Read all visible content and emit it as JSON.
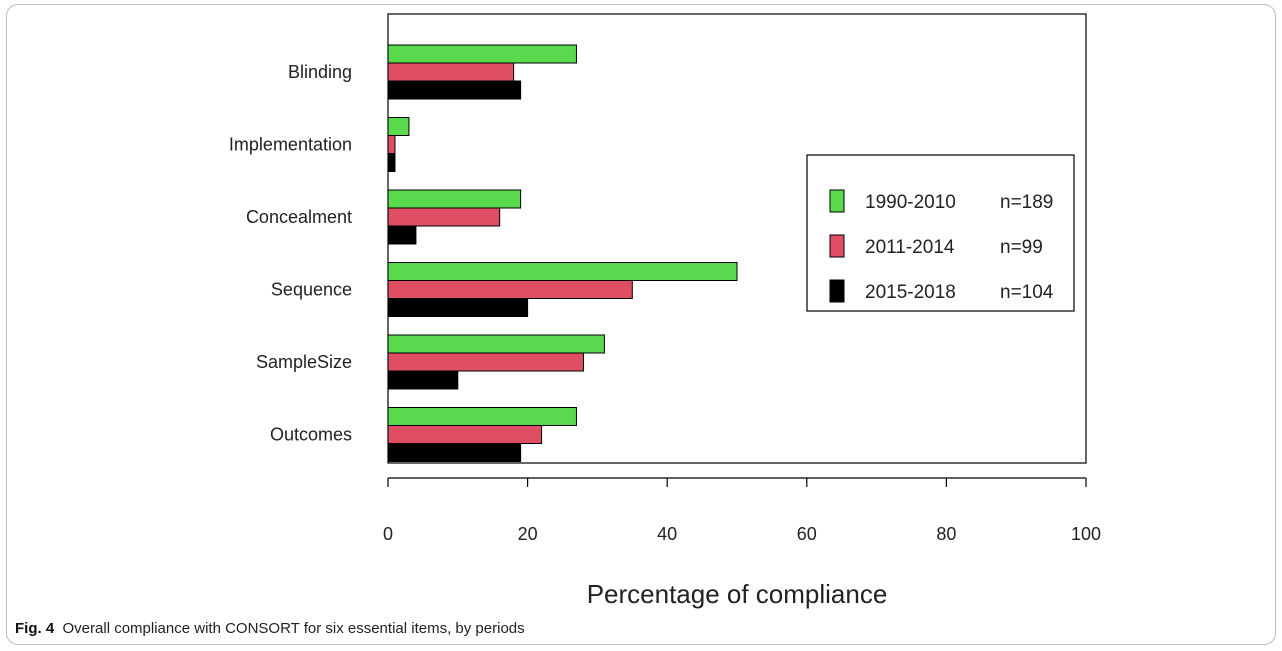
{
  "caption": {
    "label": "Fig. 4",
    "text": "Overall compliance with CONSORT for six essential items, by periods"
  },
  "chart_data": {
    "type": "bar",
    "orientation": "horizontal",
    "title": "",
    "xlabel": "Percentage of compliance",
    "ylabel": "",
    "xlim": [
      0,
      100
    ],
    "xticks": [
      0,
      20,
      40,
      60,
      80,
      100
    ],
    "categories": [
      "Blinding",
      "Implementation",
      "Concealment",
      "Sequence",
      "SampleSize",
      "Outcomes"
    ],
    "series": [
      {
        "name": "1990-2010",
        "n_label": "n=189",
        "color": "#5ad84e",
        "values": [
          27,
          3,
          19,
          50,
          31,
          27
        ]
      },
      {
        "name": "2011-2014",
        "n_label": "n=99",
        "color": "#df4e63",
        "values": [
          18,
          1,
          16,
          35,
          28,
          22
        ]
      },
      {
        "name": "2015-2018",
        "n_label": "n=104",
        "color": "#000000",
        "values": [
          19,
          1,
          4,
          20,
          10,
          19
        ]
      }
    ],
    "legend": "right",
    "grid": false
  }
}
